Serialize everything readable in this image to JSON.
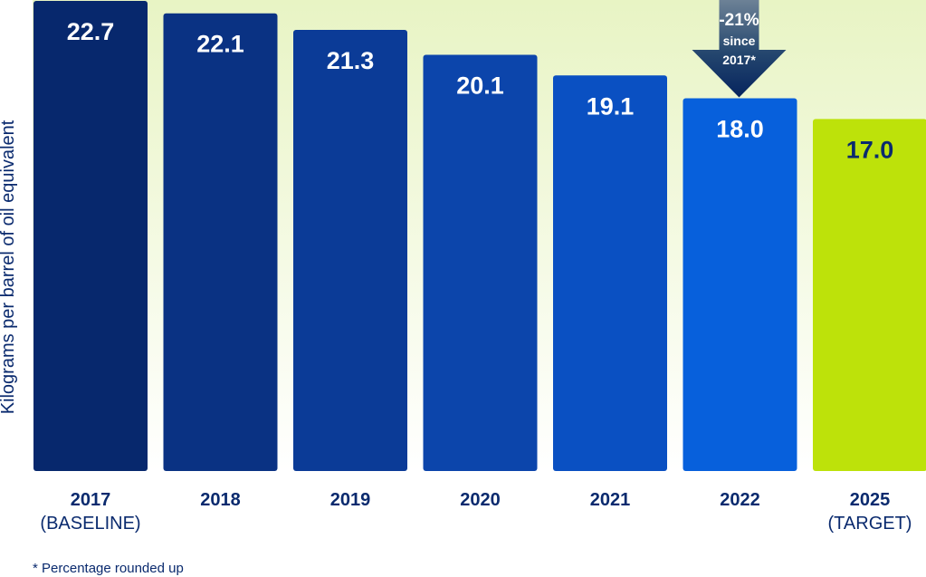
{
  "chart_data": {
    "type": "bar",
    "ylabel": "Kilograms per barrel of oil equivalent",
    "ylim": [
      0,
      22.7
    ],
    "grid": false,
    "legend": "none",
    "categories": [
      {
        "year": "2017",
        "sub": "(BASELINE)"
      },
      {
        "year": "2018",
        "sub": ""
      },
      {
        "year": "2019",
        "sub": ""
      },
      {
        "year": "2020",
        "sub": ""
      },
      {
        "year": "2021",
        "sub": ""
      },
      {
        "year": "2022",
        "sub": ""
      },
      {
        "year": "2025",
        "sub": "(TARGET)"
      }
    ],
    "values": [
      22.7,
      22.1,
      21.3,
      20.1,
      19.1,
      18.0,
      17.0
    ],
    "value_labels": [
      "22.7",
      "22.1",
      "21.3",
      "20.1",
      "19.1",
      "18.0",
      "17.0"
    ],
    "bar_colors": [
      "#07286d",
      "#0a3283",
      "#0b3b97",
      "#0c45ab",
      "#0a50c2",
      "#0760dc",
      "#bde20a"
    ],
    "value_label_colors": [
      "#ffffff",
      "#ffffff",
      "#ffffff",
      "#ffffff",
      "#ffffff",
      "#ffffff",
      "#0a2a6e"
    ],
    "annotation": {
      "target_category": "2022",
      "lines": [
        "-21%",
        "since",
        "2017*"
      ]
    },
    "background_gradient": [
      "#ffffff",
      "#e8f4c4"
    ]
  },
  "footnote": "* Percentage rounded up"
}
